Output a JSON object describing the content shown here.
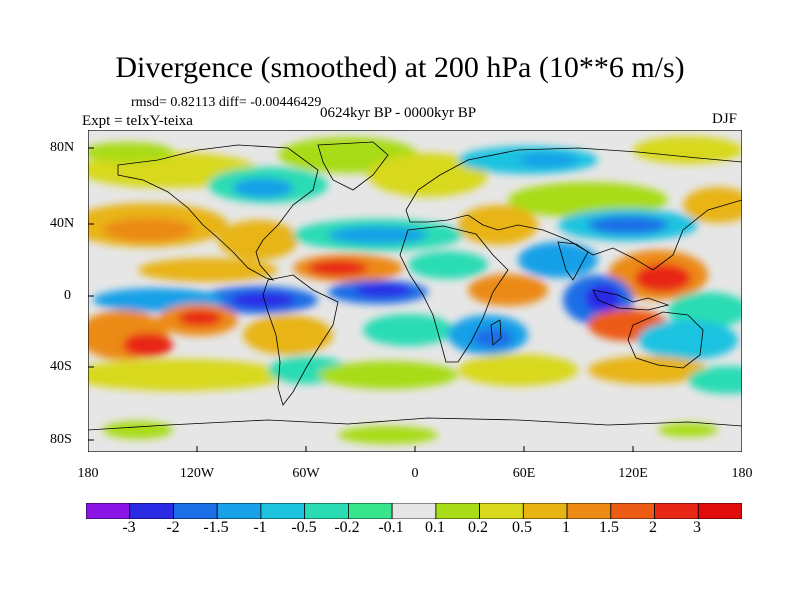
{
  "title": "Divergence (smoothed) at 200 hPa (10**6 m/s)",
  "stats": "rmsd= 0.82113  diff= -0.00446429",
  "experiment": "Expt = teIxY-teixa",
  "period": "0624kyr BP - 0000kyr BP",
  "season": "DJF",
  "lat_labels": [
    "80N",
    "40N",
    "0",
    "40S",
    "80S"
  ],
  "lon_labels": [
    "180",
    "120W",
    "60W",
    "0",
    "60E",
    "120E",
    "180"
  ],
  "colorbar": {
    "labels": [
      "-3",
      "-2",
      "-1.5",
      "-1",
      "-0.5",
      "-0.2",
      "-0.1",
      "0.1",
      "0.2",
      "0.5",
      "1",
      "1.5",
      "2",
      "3"
    ],
    "colors": [
      "#8a14e6",
      "#2b2be6",
      "#1a6ee6",
      "#18a0e8",
      "#1ec3e0",
      "#2adcb4",
      "#38e58c",
      "#e6e6e6",
      "#a8dc18",
      "#d8d81c",
      "#e8b414",
      "#ec8a14",
      "#ec5c14",
      "#e82814",
      "#e00c0c"
    ]
  },
  "field_colors": {
    "neutral": "#e6e6e6",
    "blue_strong": "#2b2be6",
    "blue": "#1a6ee6",
    "blue_light": "#18a0e8",
    "cyan": "#1ec3e0",
    "teal": "#2adcb4",
    "green": "#38e58c",
    "lime": "#a8dc18",
    "yellow": "#d8d81c",
    "gold": "#e8b414",
    "orange": "#ec8a14",
    "red_orange": "#ec5c14",
    "red": "#e82814",
    "coast": "#000000"
  }
}
